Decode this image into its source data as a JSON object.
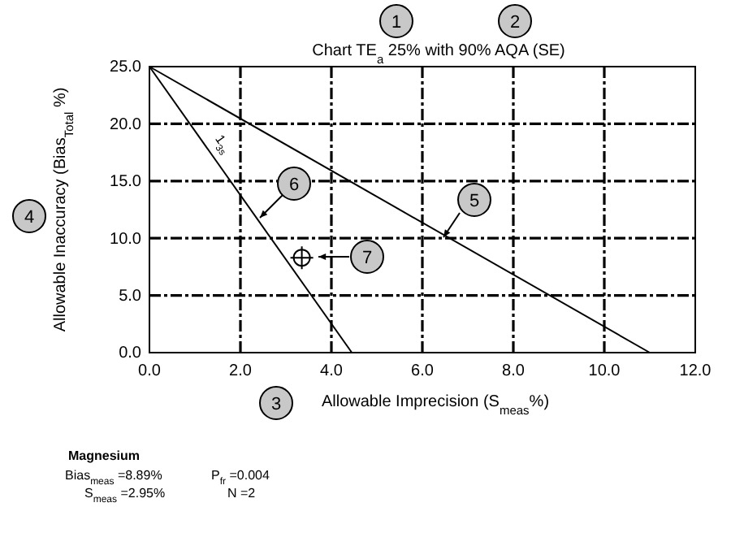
{
  "chart_data": {
    "type": "line",
    "title": "Chart TE$_{a}$  25% with 90% AQA (SE)",
    "xlabel": "Allowable Imprecision (S$_{meas}$%)",
    "ylabel": "Allowable Inaccuracy (Bias$_{Total}$ %)",
    "xlim": [
      0,
      12
    ],
    "ylim": [
      0,
      25
    ],
    "xticks": [
      {
        "value": 0,
        "label": "0.0"
      },
      {
        "value": 2,
        "label": "2.0"
      },
      {
        "value": 4,
        "label": "4.0"
      },
      {
        "value": 6,
        "label": "6.0"
      },
      {
        "value": 8,
        "label": "8.0"
      },
      {
        "value": 10,
        "label": "10.0"
      },
      {
        "value": 12,
        "label": "12.0"
      }
    ],
    "yticks": [
      {
        "value": 0,
        "label": "0.0"
      },
      {
        "value": 5,
        "label": "5.0"
      },
      {
        "value": 10,
        "label": "10.0"
      },
      {
        "value": 15,
        "label": "15.0"
      },
      {
        "value": 20,
        "label": "20.0"
      },
      {
        "value": 25,
        "label": "25.0"
      }
    ],
    "grid": true,
    "line_style": "solid",
    "series": [
      {
        "color": "#000000",
        "x": [
          0,
          11.0
        ],
        "values": [
          25,
          0
        ]
      },
      {
        "name": "1$_{3s}$",
        "color": "#000000",
        "x": [
          0,
          4.45
        ],
        "values": [
          25,
          0
        ]
      },
      {
        "type": "scatter",
        "color": "#000000",
        "marker": "circle",
        "x": [
          3.35
        ],
        "values": [
          8.3
        ]
      }
    ],
    "annotations": [
      "1",
      "2",
      "3",
      "4",
      "5",
      "6",
      "7",
      "Magnesium",
      "Bias$_{meas}$ =8.89%",
      "S$_{meas}$ =2.95%",
      "P$_{fr}$ =0.004",
      "N =2"
    ]
  }
}
